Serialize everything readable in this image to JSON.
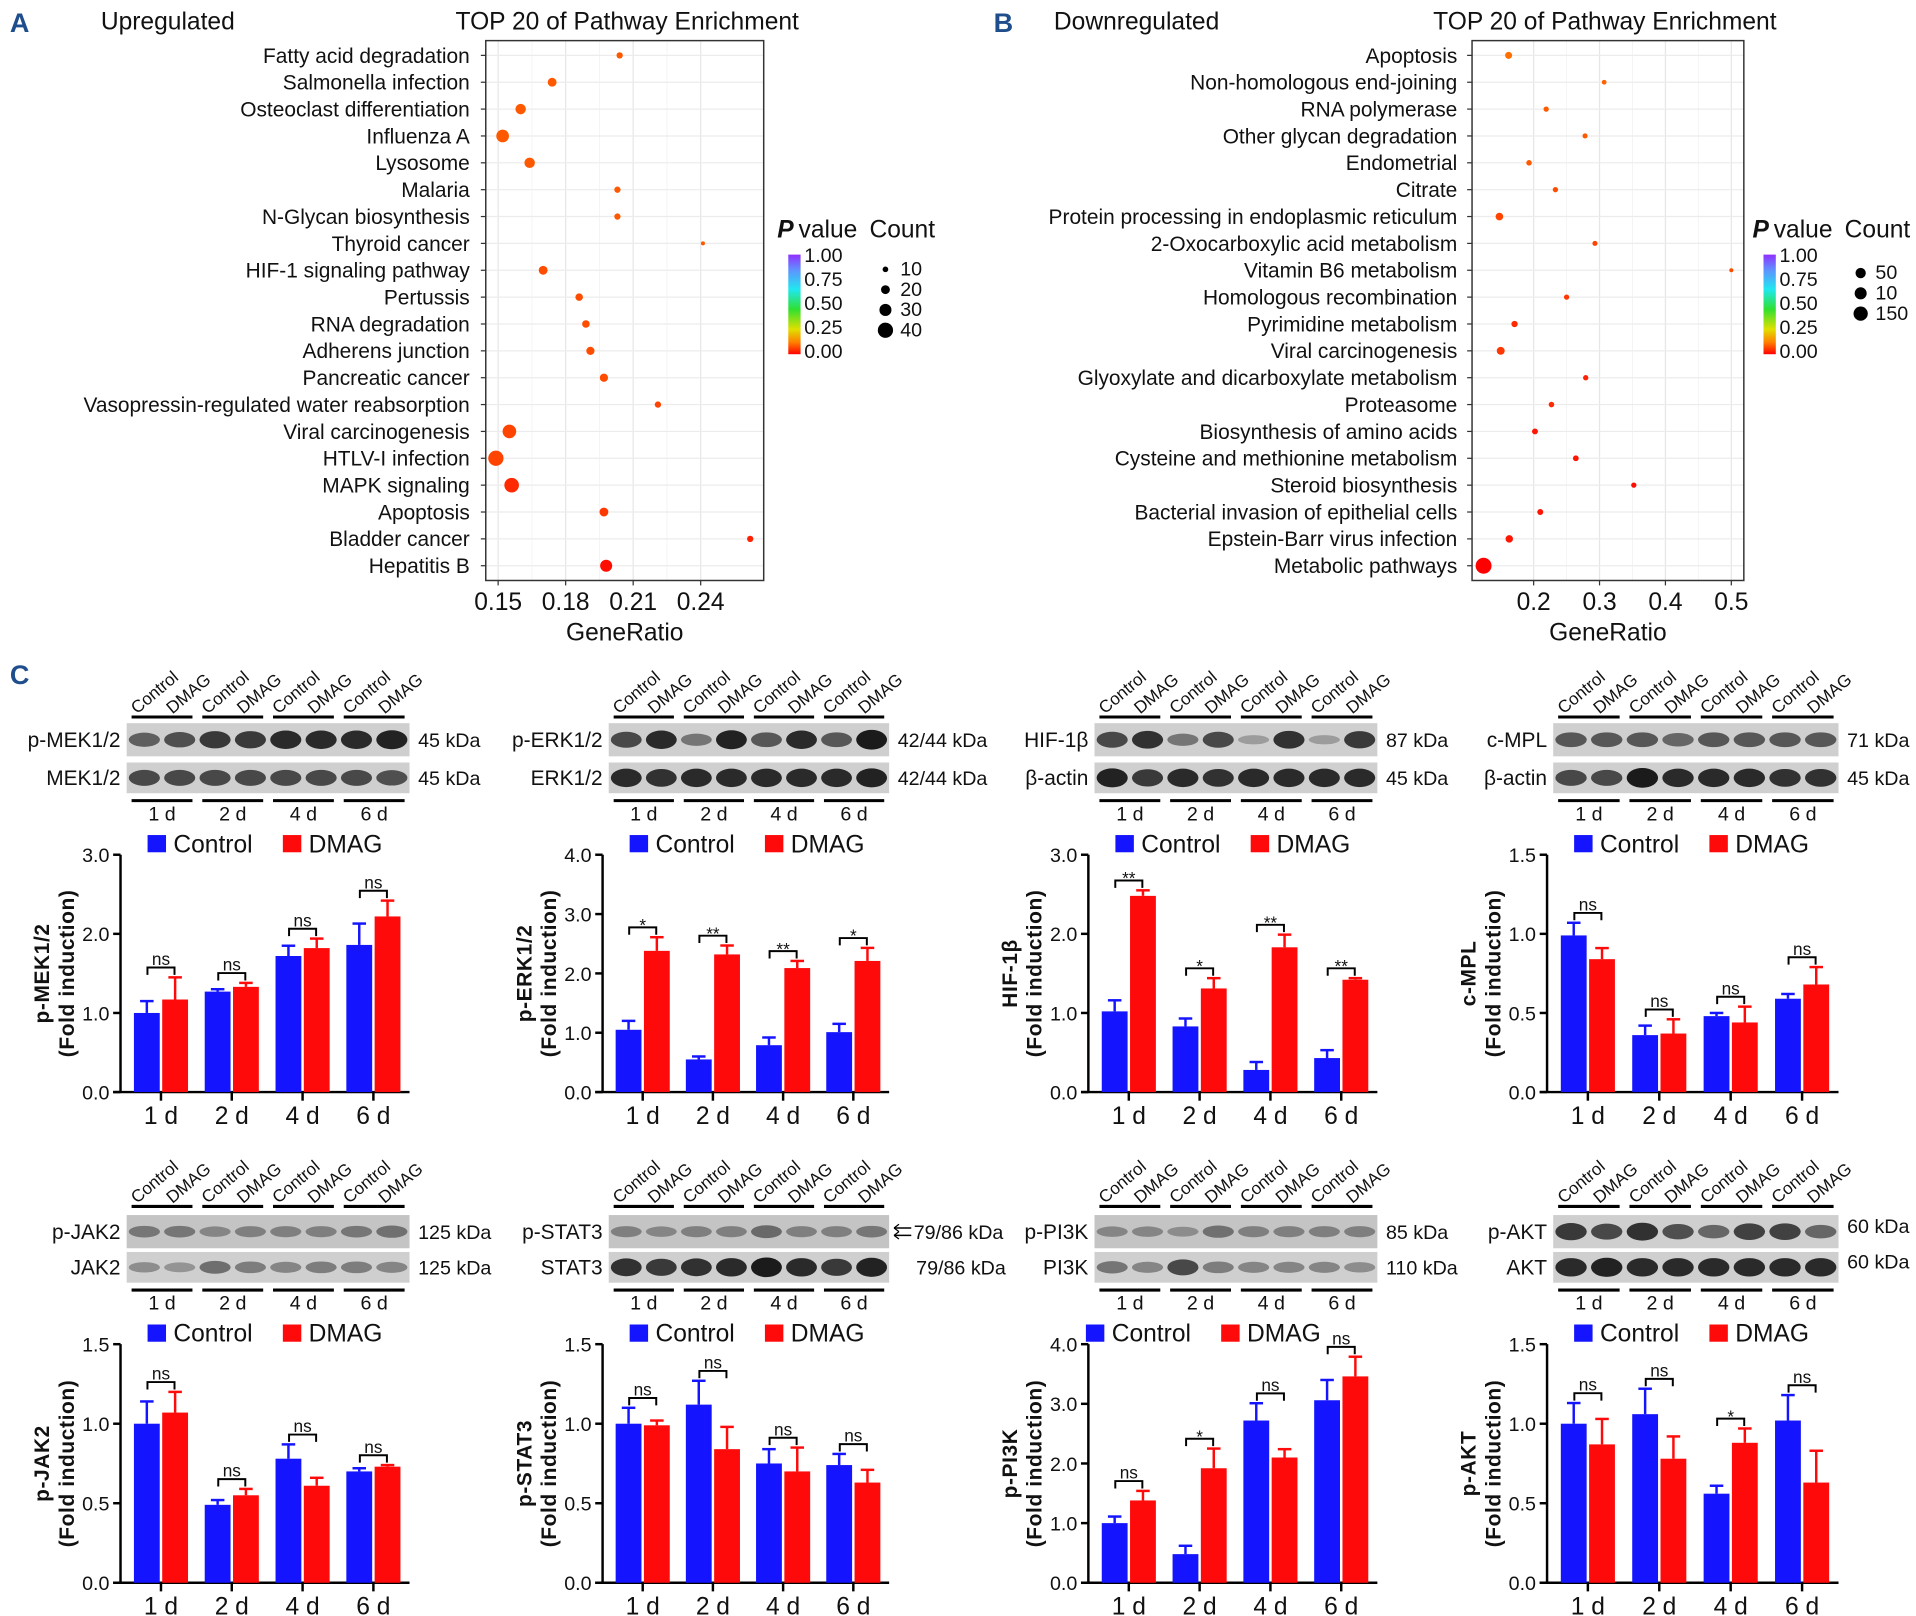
{
  "panel_labels": {
    "a": "A",
    "b": "B",
    "c": "C"
  },
  "colors": {
    "control": "#1414ff",
    "dmag": "#ff0a0a",
    "panel_label": "#1f4e8c"
  },
  "chart_data": [
    {
      "type": "scatter",
      "panel_title": "Upregulated",
      "title": "TOP 20 of Pathway Enrichment",
      "xlabel": "GeneRatio",
      "x_ticks": [
        0.15,
        0.18,
        0.21,
        0.24
      ],
      "x_tick_labels": [
        "0.15",
        "0.18",
        "0.21",
        "0.24"
      ],
      "xlim": [
        0.1445,
        0.268
      ],
      "grid": true,
      "pathways": [
        "Fatty acid degradation",
        "Salmonella infection",
        "Osteoclast differentiation",
        "Influenza A",
        "Lysosome",
        "Malaria",
        "N-Glycan biosynthesis",
        "Thyroid cancer",
        "HIF-1 signaling pathway",
        "Pertussis",
        "RNA degradation",
        "Adherens junction",
        "Pancreatic cancer",
        "Vasopressin-regulated water reabsorption",
        "Viral carcinogenesis",
        "HTLV-I infection",
        "MAPK signaling",
        "Apoptosis",
        "Bladder cancer",
        "Hepatitis B"
      ],
      "gene_ratio": [
        0.204,
        0.174,
        0.16,
        0.152,
        0.164,
        0.203,
        0.203,
        0.241,
        0.17,
        0.186,
        0.189,
        0.191,
        0.197,
        0.221,
        0.155,
        0.149,
        0.156,
        0.197,
        0.262,
        0.198
      ],
      "count": [
        12,
        20,
        25,
        32,
        25,
        12,
        12,
        5,
        20,
        16,
        16,
        18,
        18,
        12,
        35,
        40,
        38,
        20,
        12,
        30
      ],
      "p_value": [
        0.08,
        0.08,
        0.08,
        0.08,
        0.08,
        0.08,
        0.08,
        0.08,
        0.07,
        0.07,
        0.07,
        0.07,
        0.07,
        0.06,
        0.06,
        0.06,
        0.04,
        0.05,
        0.03,
        0.01
      ],
      "legend": {
        "color_title_italic": "P",
        "color_title_rest": "value",
        "color_ticks": [
          "1.00",
          "0.75",
          "0.50",
          "0.25",
          "0.00"
        ],
        "size_title": "Count",
        "size_labels": [
          "10",
          "20",
          "30",
          "40"
        ],
        "placement": "right"
      }
    },
    {
      "type": "scatter",
      "panel_title": "Downregulated",
      "title": "TOP 20 of Pathway Enrichment",
      "xlabel": "GeneRatio",
      "x_ticks": [
        0.2,
        0.3,
        0.4,
        0.5
      ],
      "x_tick_labels": [
        "0.2",
        "0.3",
        "0.4",
        "0.5"
      ],
      "xlim": [
        0.1065,
        0.519
      ],
      "grid": true,
      "pathways": [
        "Apoptosis",
        "Non-homologous end-joining",
        "RNA polymerase",
        "Other glycan degradation",
        "Endometrial",
        "Citrate",
        "Protein processing in endoplasmic reticulum",
        "2-Oxocarboxylic acid metabolism",
        "Vitamin B6 metabolism",
        "Homologous recombination",
        "Pyrimidine metabolism",
        "Viral carcinogenesis",
        "Glyoxylate and dicarboxylate metabolism",
        "Proteasome",
        "Biosynthesis of amino acids",
        "Cysteine and methionine metabolism",
        "Steroid biosynthesis",
        "Bacterial invasion of epithelial cells",
        "Epstein-Barr virus infection",
        "Metabolic pathways"
      ],
      "gene_ratio": [
        0.162,
        0.307,
        0.219,
        0.278,
        0.193,
        0.233,
        0.148,
        0.293,
        0.5,
        0.25,
        0.171,
        0.15,
        0.279,
        0.227,
        0.202,
        0.264,
        0.352,
        0.21,
        0.163,
        0.124
      ],
      "count": [
        15,
        3,
        5,
        4,
        6,
        5,
        20,
        4,
        1,
        5,
        10,
        22,
        5,
        6,
        8,
        7,
        5,
        8,
        18,
        150
      ],
      "p_value": [
        0.1,
        0.09,
        0.08,
        0.08,
        0.08,
        0.07,
        0.06,
        0.06,
        0.07,
        0.05,
        0.04,
        0.05,
        0.03,
        0.04,
        0.02,
        0.02,
        0.01,
        0.02,
        0.02,
        0.0
      ],
      "legend": {
        "color_title_italic": "P",
        "color_title_rest": "value",
        "color_ticks": [
          "1.00",
          "0.75",
          "0.50",
          "0.25",
          "0.00"
        ],
        "size_title": "Count",
        "size_labels": [
          "50",
          "10",
          "150"
        ],
        "placement": "right"
      }
    },
    {
      "type": "bar",
      "categories": [
        "1 d",
        "2 d",
        "4 d",
        "6 d"
      ],
      "ylabel": [
        "p-MEK1/2",
        "(Fold induction)"
      ],
      "ylim": [
        0,
        3
      ],
      "y_ticks": [
        0,
        1,
        2,
        3
      ],
      "y_tick_labels": [
        "0.0",
        "1.0",
        "2.0",
        "3.0"
      ],
      "series": [
        {
          "name": "Control",
          "values": [
            1.0,
            1.27,
            1.72,
            1.86
          ],
          "errors": [
            0.15,
            0.03,
            0.13,
            0.27
          ]
        },
        {
          "name": "DMAG",
          "values": [
            1.17,
            1.33,
            1.82,
            2.22
          ],
          "errors": [
            0.28,
            0.05,
            0.12,
            0.2
          ]
        }
      ],
      "significance": [
        "ns",
        "ns",
        "ns",
        "ns"
      ],
      "blot": {
        "lanes": [
          "Control",
          "DMAG"
        ],
        "rows": [
          {
            "label": "p-MEK1/2",
            "kda": "45 kDa"
          },
          {
            "label": "MEK1/2",
            "kda": "45 kDa"
          }
        ],
        "times": [
          "1 d",
          "2 d",
          "4 d",
          "6 d"
        ]
      }
    },
    {
      "type": "bar",
      "categories": [
        "1 d",
        "2 d",
        "4 d",
        "6 d"
      ],
      "ylabel": [
        "p-ERK1/2",
        "(Fold induction)"
      ],
      "ylim": [
        0,
        4
      ],
      "y_ticks": [
        0,
        1,
        2,
        3,
        4
      ],
      "y_tick_labels": [
        "0.0",
        "1.0",
        "2.0",
        "3.0",
        "4.0"
      ],
      "series": [
        {
          "name": "Control",
          "values": [
            1.05,
            0.55,
            0.79,
            1.01
          ],
          "errors": [
            0.15,
            0.05,
            0.13,
            0.14
          ]
        },
        {
          "name": "DMAG",
          "values": [
            2.38,
            2.32,
            2.09,
            2.21
          ],
          "errors": [
            0.23,
            0.15,
            0.12,
            0.22
          ]
        }
      ],
      "significance": [
        "*",
        "**",
        "**",
        "*"
      ],
      "blot": {
        "lanes": [
          "Control",
          "DMAG"
        ],
        "rows": [
          {
            "label": "p-ERK1/2",
            "kda": "42/44 kDa"
          },
          {
            "label": "ERK1/2",
            "kda": "42/44 kDa"
          }
        ],
        "times": [
          "1 d",
          "2 d",
          "4 d",
          "6 d"
        ]
      }
    },
    {
      "type": "bar",
      "categories": [
        "1 d",
        "2 d",
        "4 d",
        "6 d"
      ],
      "ylabel": [
        "HIF-1β",
        "(Fold induction)"
      ],
      "ylim": [
        0,
        3
      ],
      "y_ticks": [
        0,
        1,
        2,
        3
      ],
      "y_tick_labels": [
        "0.0",
        "1.0",
        "2.0",
        "3.0"
      ],
      "series": [
        {
          "name": "Control",
          "values": [
            1.02,
            0.83,
            0.28,
            0.43
          ],
          "errors": [
            0.14,
            0.1,
            0.1,
            0.1
          ]
        },
        {
          "name": "DMAG",
          "values": [
            2.48,
            1.31,
            1.83,
            1.42
          ],
          "errors": [
            0.07,
            0.13,
            0.16,
            0.02
          ]
        }
      ],
      "significance": [
        "**",
        "*",
        "**",
        "**"
      ],
      "blot": {
        "lanes": [
          "Control",
          "DMAG"
        ],
        "rows": [
          {
            "label": "HIF-1β",
            "kda": "87 kDa"
          },
          {
            "label": "β-actin",
            "kda": "45 kDa"
          }
        ],
        "times": [
          "1 d",
          "2 d",
          "4 d",
          "6 d"
        ]
      }
    },
    {
      "type": "bar",
      "categories": [
        "1 d",
        "2 d",
        "4 d",
        "6 d"
      ],
      "ylabel": [
        "c-MPL",
        "(Fold induction)"
      ],
      "ylim": [
        0,
        1.5
      ],
      "y_ticks": [
        0,
        0.5,
        1,
        1.5
      ],
      "y_tick_labels": [
        "0.0",
        "0.5",
        "1.0",
        "1.5"
      ],
      "series": [
        {
          "name": "Control",
          "values": [
            0.99,
            0.36,
            0.48,
            0.59
          ],
          "errors": [
            0.08,
            0.06,
            0.02,
            0.03
          ]
        },
        {
          "name": "DMAG",
          "values": [
            0.84,
            0.37,
            0.44,
            0.68
          ],
          "errors": [
            0.07,
            0.09,
            0.1,
            0.11
          ]
        }
      ],
      "significance": [
        "ns",
        "ns",
        "ns",
        "ns"
      ],
      "blot": {
        "lanes": [
          "Control",
          "DMAG"
        ],
        "rows": [
          {
            "label": "c-MPL",
            "kda": "71 kDa"
          },
          {
            "label": "β-actin",
            "kda": "45 kDa"
          }
        ],
        "times": [
          "1 d",
          "2 d",
          "4 d",
          "6 d"
        ]
      }
    },
    {
      "type": "bar",
      "categories": [
        "1 d",
        "2 d",
        "4 d",
        "6 d"
      ],
      "ylabel": [
        "p-JAK2",
        "(Fold induction)"
      ],
      "ylim": [
        0,
        1.5
      ],
      "y_ticks": [
        0,
        0.5,
        1,
        1.5
      ],
      "y_tick_labels": [
        "0.0",
        "0.5",
        "1.0",
        "1.5"
      ],
      "series": [
        {
          "name": "Control",
          "values": [
            1.0,
            0.49,
            0.78,
            0.7
          ],
          "errors": [
            0.14,
            0.03,
            0.09,
            0.02
          ]
        },
        {
          "name": "DMAG",
          "values": [
            1.07,
            0.55,
            0.61,
            0.73
          ],
          "errors": [
            0.13,
            0.04,
            0.05,
            0.01
          ]
        }
      ],
      "significance": [
        "ns",
        "ns",
        "ns",
        "ns"
      ],
      "blot": {
        "lanes": [
          "Control",
          "DMAG"
        ],
        "rows": [
          {
            "label": "p-JAK2",
            "kda": "125 kDa"
          },
          {
            "label": "JAK2",
            "kda": "125 kDa"
          }
        ],
        "times": [
          "1 d",
          "2 d",
          "4 d",
          "6 d"
        ]
      }
    },
    {
      "type": "bar",
      "categories": [
        "1 d",
        "2 d",
        "4 d",
        "6 d"
      ],
      "ylabel": [
        "p-STAT3",
        "(Fold induction)"
      ],
      "ylim": [
        0,
        1.5
      ],
      "y_ticks": [
        0,
        0.5,
        1,
        1.5
      ],
      "y_tick_labels": [
        "0.0",
        "0.5",
        "1.0",
        "1.5"
      ],
      "series": [
        {
          "name": "Control",
          "values": [
            1.0,
            1.12,
            0.75,
            0.74
          ],
          "errors": [
            0.1,
            0.15,
            0.09,
            0.07
          ]
        },
        {
          "name": "DMAG",
          "values": [
            0.99,
            0.84,
            0.7,
            0.63
          ],
          "errors": [
            0.03,
            0.14,
            0.15,
            0.08
          ]
        }
      ],
      "significance": [
        "ns",
        "ns",
        "ns",
        "ns"
      ],
      "blot": {
        "lanes": [
          "Control",
          "DMAG"
        ],
        "rows": [
          {
            "label": "p-STAT3",
            "kda": "79/86 kDa"
          },
          {
            "label": "STAT3",
            "kda": "79/86 kDa"
          }
        ],
        "times": [
          "1 d",
          "2 d",
          "4 d",
          "6 d"
        ]
      }
    },
    {
      "type": "bar",
      "categories": [
        "1 d",
        "2 d",
        "4 d",
        "6 d"
      ],
      "ylabel": [
        "p-PI3K",
        "(Fold induction)"
      ],
      "ylim": [
        0,
        4
      ],
      "y_ticks": [
        0,
        1,
        2,
        3,
        4
      ],
      "y_tick_labels": [
        "0.0",
        "1.0",
        "2.0",
        "3.0",
        "4.0"
      ],
      "series": [
        {
          "name": "Control",
          "values": [
            1.0,
            0.48,
            2.72,
            3.06
          ],
          "errors": [
            0.11,
            0.14,
            0.29,
            0.34
          ]
        },
        {
          "name": "DMAG",
          "values": [
            1.38,
            1.92,
            2.1,
            3.46
          ],
          "errors": [
            0.16,
            0.33,
            0.14,
            0.33
          ]
        }
      ],
      "significance": [
        "ns",
        "*",
        "ns",
        "ns"
      ],
      "blot": {
        "lanes": [
          "Control",
          "DMAG"
        ],
        "rows": [
          {
            "label": "p-PI3K",
            "kda": "85 kDa"
          },
          {
            "label": "PI3K",
            "kda": "110 kDa"
          }
        ],
        "times": [
          "1 d",
          "2 d",
          "4 d",
          "6 d"
        ]
      }
    },
    {
      "type": "bar",
      "categories": [
        "1 d",
        "2 d",
        "4 d",
        "6 d"
      ],
      "ylabel": [
        "p-AKT",
        "(Fold induction)"
      ],
      "ylim": [
        0,
        1.5
      ],
      "y_ticks": [
        0,
        0.5,
        1,
        1.5
      ],
      "y_tick_labels": [
        "0.0",
        "0.5",
        "1.0",
        "1.5"
      ],
      "series": [
        {
          "name": "Control",
          "values": [
            1.0,
            1.06,
            0.56,
            1.02
          ],
          "errors": [
            0.13,
            0.16,
            0.05,
            0.16
          ]
        },
        {
          "name": "DMAG",
          "values": [
            0.87,
            0.78,
            0.88,
            0.63
          ],
          "errors": [
            0.16,
            0.14,
            0.09,
            0.2
          ]
        }
      ],
      "significance": [
        "ns",
        "ns",
        "*",
        "ns"
      ],
      "blot": {
        "lanes": [
          "Control",
          "DMAG"
        ],
        "rows": [
          {
            "label": "p-AKT",
            "kda": "60 kDa"
          },
          {
            "label": "AKT",
            "kda": "60 kDa"
          }
        ],
        "times": [
          "1 d",
          "2 d",
          "4 d",
          "6 d"
        ]
      }
    }
  ]
}
